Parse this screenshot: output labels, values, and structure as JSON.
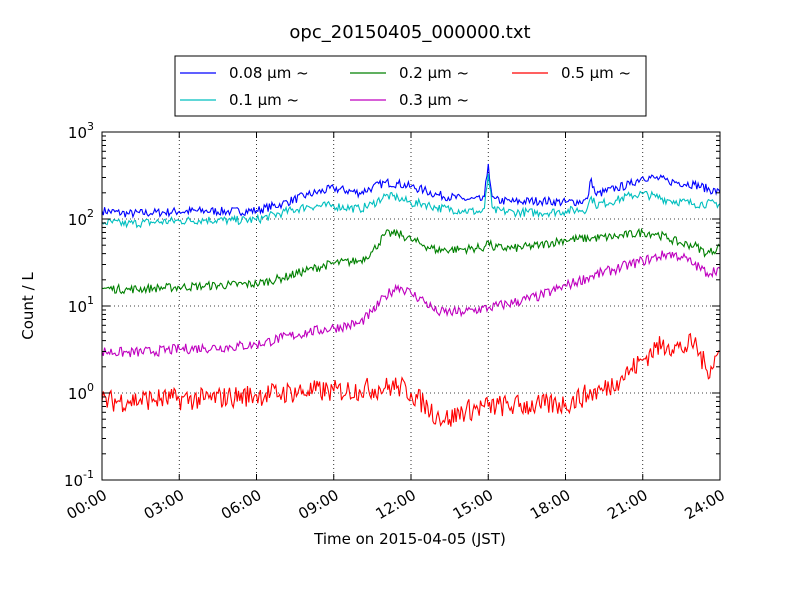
{
  "chart_data": {
    "type": "line",
    "title": "opc_20150405_000000.txt",
    "xlabel": "Time on 2015-04-05 (JST)",
    "ylabel": "Count / L",
    "y_scale": "log",
    "ylim": [
      0.1,
      1000
    ],
    "xlim": [
      "00:00",
      "24:00"
    ],
    "grid": true,
    "legend_position": "top-center",
    "x_ticks": [
      "00:00",
      "03:00",
      "06:00",
      "09:00",
      "12:00",
      "15:00",
      "18:00",
      "21:00",
      "24:00"
    ],
    "y_ticks": [
      {
        "base": "10",
        "exp": "-1",
        "value": 0.1
      },
      {
        "base": "10",
        "exp": "0",
        "value": 1
      },
      {
        "base": "10",
        "exp": "1",
        "value": 10
      },
      {
        "base": "10",
        "exp": "2",
        "value": 100
      },
      {
        "base": "10",
        "exp": "3",
        "value": 1000
      }
    ],
    "series": [
      {
        "name": "0.08 μm ~",
        "color": "#0000ff",
        "x": [
          "00:00",
          "01:00",
          "02:00",
          "03:00",
          "04:00",
          "05:00",
          "06:00",
          "07:00",
          "08:00",
          "09:00",
          "10:00",
          "10:30",
          "11:00",
          "11:30",
          "12:00",
          "12:30",
          "13:00",
          "14:00",
          "14:50",
          "15:00",
          "15:10",
          "16:00",
          "17:00",
          "18:00",
          "18:50",
          "19:00",
          "19:10",
          "20:00",
          "20:30",
          "21:00",
          "21:30",
          "22:00",
          "23:00",
          "24:00"
        ],
        "values": [
          125,
          115,
          118,
          122,
          124,
          122,
          125,
          150,
          190,
          225,
          200,
          230,
          262,
          255,
          235,
          215,
          190,
          170,
          165,
          430,
          165,
          158,
          162,
          155,
          162,
          290,
          190,
          228,
          250,
          305,
          295,
          272,
          250,
          200
        ],
        "noise": 0.05
      },
      {
        "name": "0.1 μm ~",
        "color": "#00bfbf",
        "x": [
          "00:00",
          "01:00",
          "02:00",
          "03:00",
          "04:00",
          "05:00",
          "06:00",
          "07:00",
          "08:00",
          "09:00",
          "10:00",
          "10:30",
          "11:00",
          "11:30",
          "12:00",
          "12:30",
          "13:00",
          "14:00",
          "14:50",
          "15:00",
          "15:10",
          "16:00",
          "17:00",
          "18:00",
          "18:50",
          "19:00",
          "19:10",
          "20:00",
          "20:30",
          "21:00",
          "21:30",
          "22:00",
          "23:00",
          "24:00"
        ],
        "values": [
          92,
          88,
          92,
          95,
          98,
          96,
          98,
          118,
          140,
          142,
          130,
          148,
          185,
          175,
          152,
          150,
          135,
          125,
          120,
          330,
          125,
          120,
          118,
          123,
          130,
          180,
          145,
          165,
          185,
          195,
          180,
          165,
          150,
          150
        ],
        "noise": 0.05
      },
      {
        "name": "0.2 μm ~",
        "color": "#008000",
        "x": [
          "00:00",
          "01:00",
          "02:00",
          "03:00",
          "04:00",
          "05:00",
          "06:00",
          "07:00",
          "08:00",
          "09:00",
          "10:00",
          "10:30",
          "11:00",
          "11:30",
          "12:00",
          "12:30",
          "13:00",
          "14:00",
          "14:50",
          "15:00",
          "15:10",
          "16:00",
          "17:00",
          "18:00",
          "19:00",
          "20:00",
          "21:00",
          "21:30",
          "22:00",
          "22:30",
          "23:00",
          "23:30",
          "24:00"
        ],
        "values": [
          16,
          15.5,
          16,
          16.5,
          17,
          17.5,
          18,
          21,
          26,
          31,
          33,
          42,
          67,
          68,
          58,
          50,
          44,
          45,
          47,
          55,
          47,
          46,
          50,
          58,
          60,
          63,
          70,
          68,
          60,
          52,
          50,
          40,
          48
        ],
        "noise": 0.05
      },
      {
        "name": "0.3 μm ~",
        "color": "#bf00bf",
        "x": [
          "00:00",
          "01:00",
          "02:00",
          "03:00",
          "04:00",
          "05:00",
          "06:00",
          "07:00",
          "08:00",
          "09:00",
          "10:00",
          "10:30",
          "11:00",
          "11:30",
          "12:00",
          "12:30",
          "13:00",
          "14:00",
          "15:00",
          "16:00",
          "17:00",
          "18:00",
          "19:00",
          "20:00",
          "21:00",
          "22:00",
          "22:30",
          "23:00",
          "23:30",
          "24:00"
        ],
        "values": [
          3.0,
          2.9,
          3.0,
          3.2,
          3.3,
          3.4,
          3.6,
          4.3,
          5.0,
          5.6,
          6.3,
          8.5,
          13,
          17,
          14,
          11.5,
          8.5,
          8.5,
          9.5,
          11,
          13,
          17,
          22,
          27,
          33,
          40,
          37,
          30,
          24,
          27
        ],
        "noise": 0.06
      },
      {
        "name": "0.5 μm ~",
        "color": "#ff0000",
        "x": [
          "00:00",
          "01:00",
          "02:00",
          "03:00",
          "04:00",
          "05:00",
          "06:00",
          "07:00",
          "08:00",
          "09:00",
          "10:00",
          "11:00",
          "11:30",
          "12:00",
          "12:30",
          "13:00",
          "13:30",
          "14:00",
          "15:00",
          "16:00",
          "17:00",
          "18:00",
          "19:00",
          "19:30",
          "20:00",
          "20:30",
          "21:00",
          "21:30",
          "22:00",
          "22:30",
          "23:00",
          "23:30",
          "24:00"
        ],
        "values": [
          0.8,
          0.82,
          0.85,
          0.85,
          0.85,
          0.9,
          0.95,
          1.0,
          1.05,
          1.05,
          1.1,
          1.15,
          1.2,
          1.0,
          0.75,
          0.55,
          0.5,
          0.62,
          0.7,
          0.72,
          0.72,
          0.75,
          1.0,
          1.1,
          1.4,
          1.8,
          2.4,
          3.3,
          3.6,
          3.2,
          3.8,
          1.8,
          3.0
        ],
        "noise": 0.13
      }
    ]
  }
}
